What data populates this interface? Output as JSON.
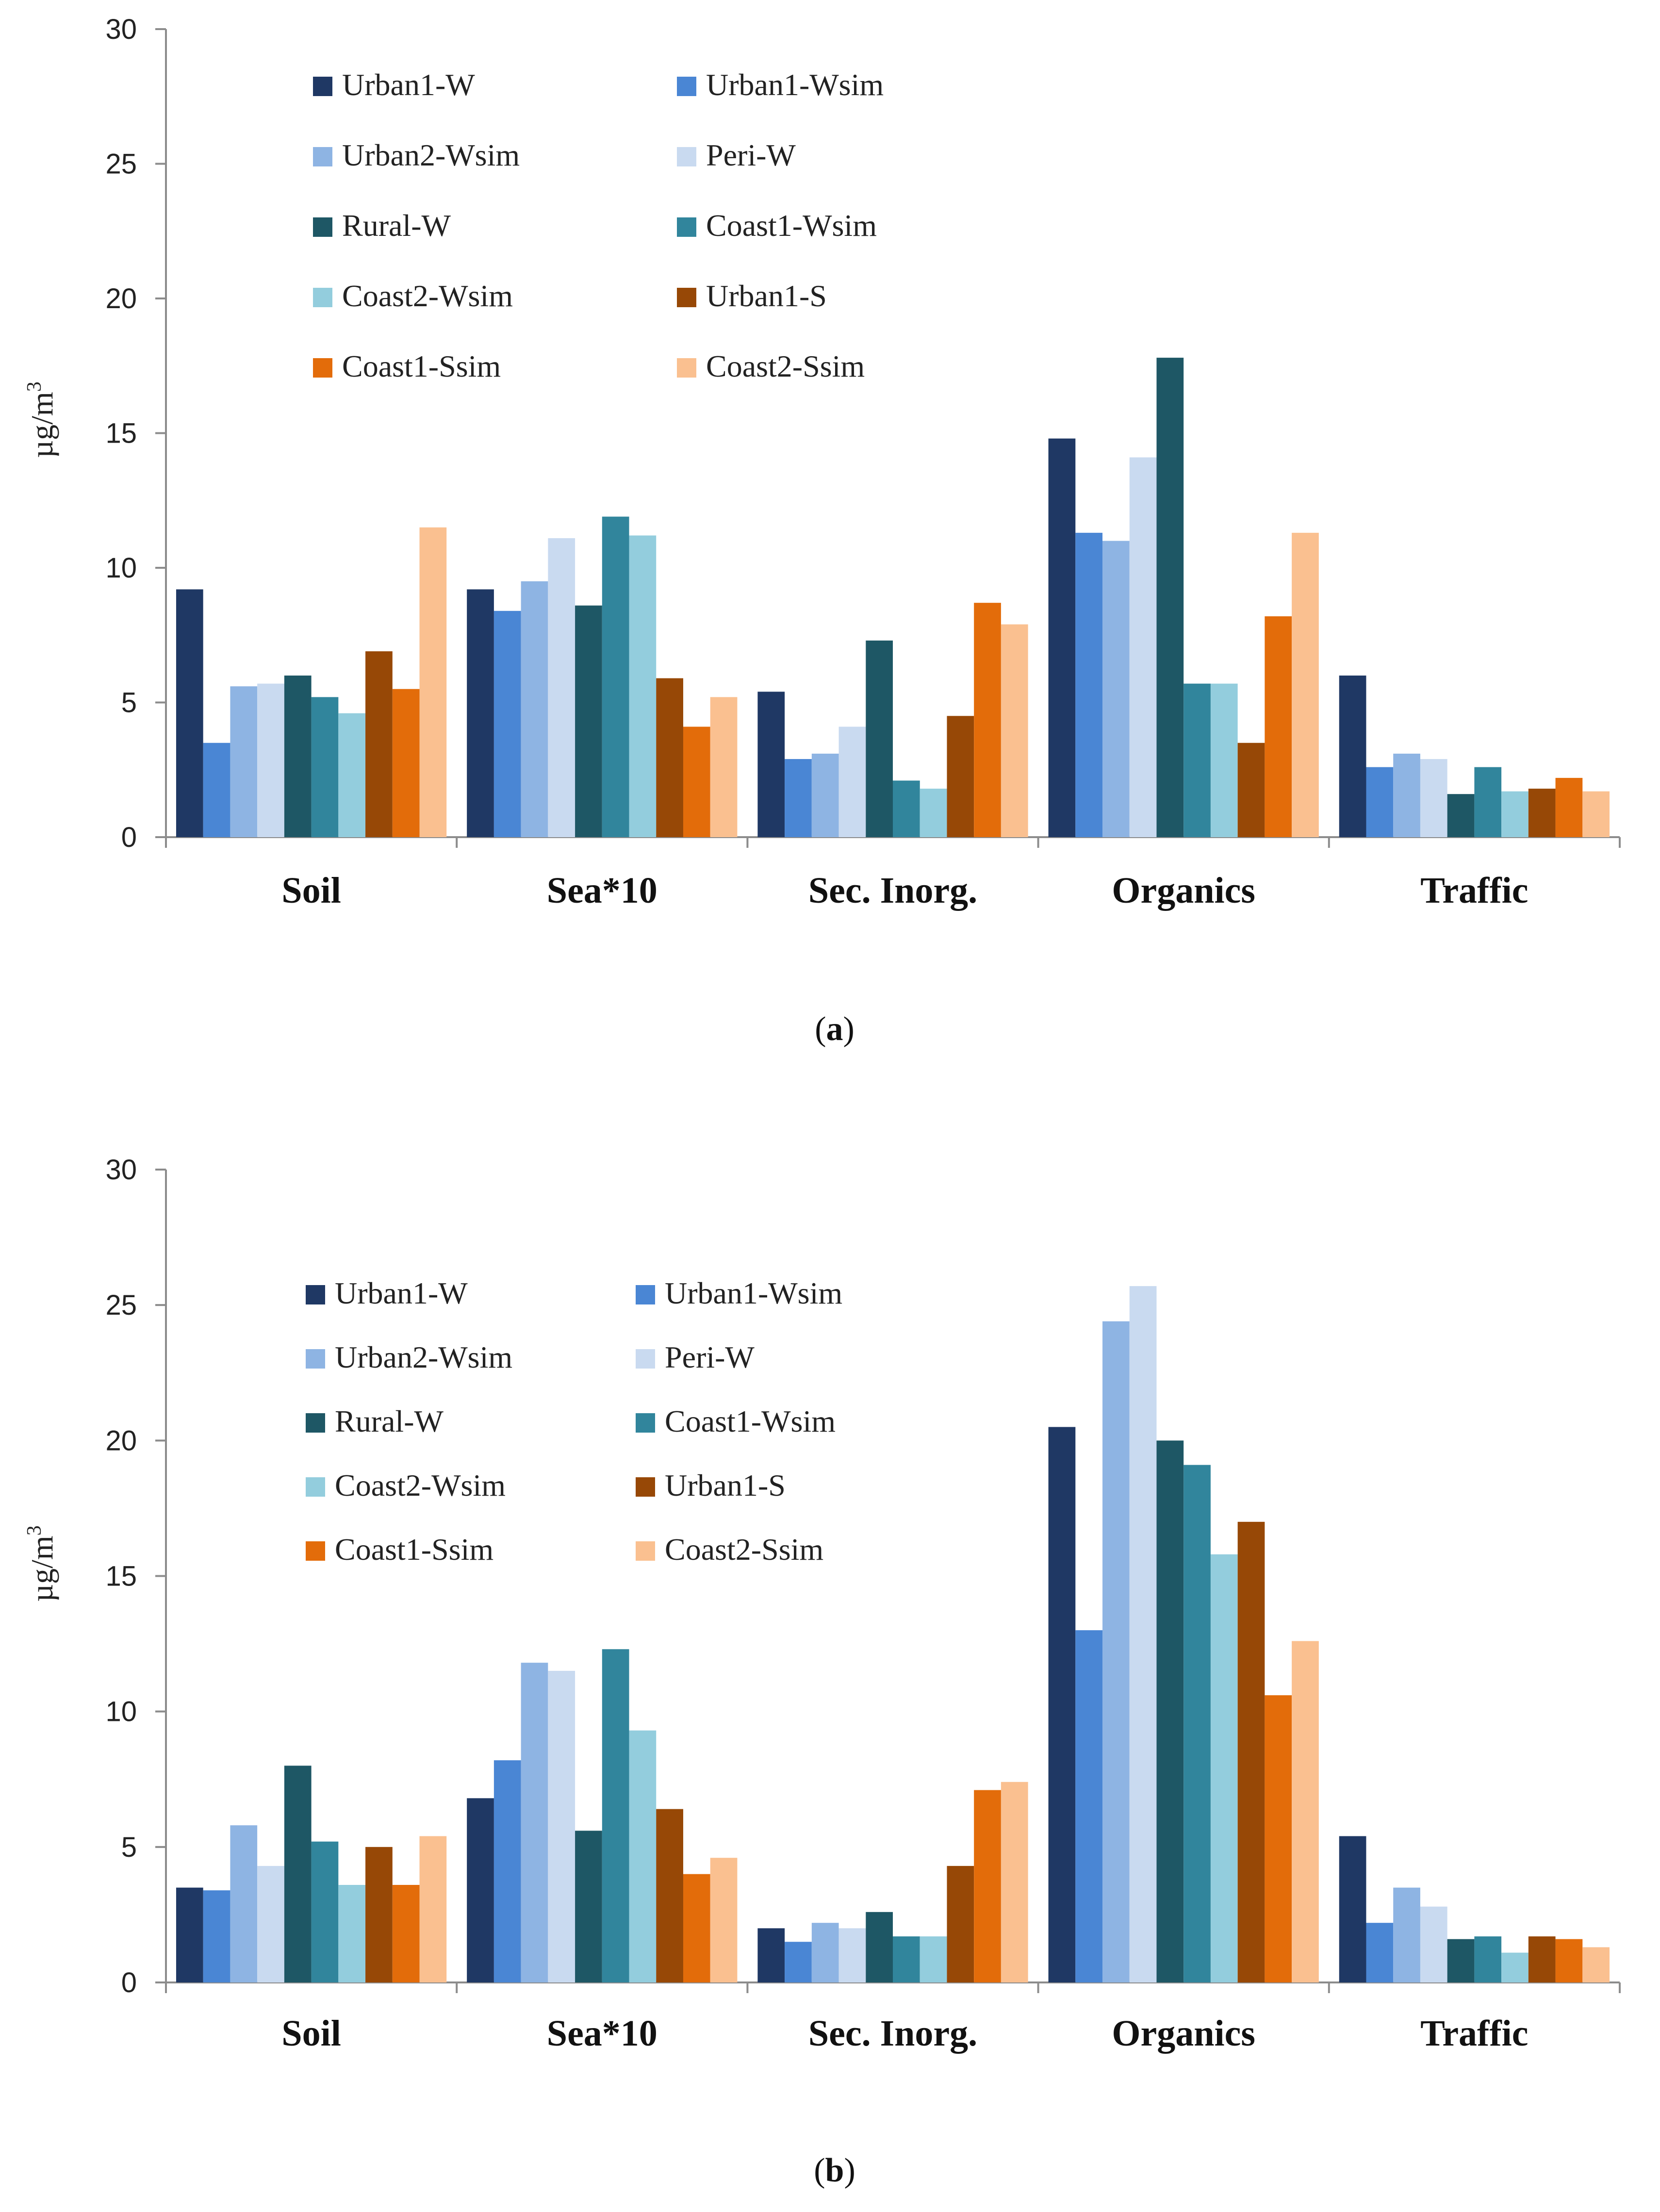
{
  "colors": {
    "Urban1-W": "#1F3864",
    "Urban1-Wsim": "#4A86D4",
    "Urban2-Wsim": "#8EB4E3",
    "Peri-W": "#C9DAF0",
    "Rural-W": "#1E5765",
    "Coast1-Wsim": "#31859C",
    "Coast2-Wsim": "#93CDDD",
    "Urban1-S": "#974806",
    "Coast1-Ssim": "#E36C0A",
    "Coast2-Ssim": "#FAC090"
  },
  "chart_data": [
    {
      "type": "bar",
      "panel_label": "a",
      "ylabel": "µg/m",
      "ylabel_sup": "3",
      "ylim": [
        0,
        30
      ],
      "yticks": [
        "0",
        "5",
        "10",
        "15",
        "20",
        "25",
        "30"
      ],
      "categories": [
        "Soil",
        "Sea*10",
        "Sec. Inorg.",
        "Organics",
        "Traffic"
      ],
      "legend": [
        "Urban1-W",
        "Urban1-Wsim",
        "Urban2-Wsim",
        "Peri-W",
        "Rural-W",
        "Coast1-Wsim",
        "Coast2-Wsim",
        "Urban1-S",
        "Coast1-Ssim",
        "Coast2-Ssim"
      ],
      "legend_position": "top-left",
      "grid": false,
      "series": [
        {
          "name": "Urban1-W",
          "values": [
            9.2,
            9.2,
            5.4,
            14.8,
            6.0
          ]
        },
        {
          "name": "Urban1-Wsim",
          "values": [
            3.5,
            8.4,
            2.9,
            11.3,
            2.6
          ]
        },
        {
          "name": "Urban2-Wsim",
          "values": [
            5.6,
            9.5,
            3.1,
            11.0,
            3.1
          ]
        },
        {
          "name": "Peri-W",
          "values": [
            5.7,
            11.1,
            4.1,
            14.1,
            2.9
          ]
        },
        {
          "name": "Rural-W",
          "values": [
            6.0,
            8.6,
            7.3,
            17.8,
            1.6
          ]
        },
        {
          "name": "Coast1-Wsim",
          "values": [
            5.2,
            11.9,
            2.1,
            5.7,
            2.6
          ]
        },
        {
          "name": "Coast2-Wsim",
          "values": [
            4.6,
            11.2,
            1.8,
            5.7,
            1.7
          ]
        },
        {
          "name": "Urban1-S",
          "values": [
            6.9,
            5.9,
            4.5,
            3.5,
            1.8
          ]
        },
        {
          "name": "Coast1-Ssim",
          "values": [
            5.5,
            4.1,
            8.7,
            8.2,
            2.2
          ]
        },
        {
          "name": "Coast2-Ssim",
          "values": [
            11.5,
            5.2,
            7.9,
            11.3,
            1.7
          ]
        }
      ]
    },
    {
      "type": "bar",
      "panel_label": "b",
      "ylabel": "µg/m",
      "ylabel_sup": "3",
      "ylim": [
        0,
        30
      ],
      "yticks": [
        "0",
        "5",
        "10",
        "15",
        "20",
        "25",
        "30"
      ],
      "categories": [
        "Soil",
        "Sea*10",
        "Sec. Inorg.",
        "Organics",
        "Traffic"
      ],
      "legend": [
        "Urban1-W",
        "Urban1-Wsim",
        "Urban2-Wsim",
        "Peri-W",
        "Rural-W",
        "Coast1-Wsim",
        "Coast2-Wsim",
        "Urban1-S",
        "Coast1-Ssim",
        "Coast2-Ssim"
      ],
      "legend_position": "top-left",
      "grid": false,
      "series": [
        {
          "name": "Urban1-W",
          "values": [
            3.5,
            6.8,
            2.0,
            20.5,
            5.4
          ]
        },
        {
          "name": "Urban1-Wsim",
          "values": [
            3.4,
            8.2,
            1.5,
            13.0,
            2.2
          ]
        },
        {
          "name": "Urban2-Wsim",
          "values": [
            5.8,
            11.8,
            2.2,
            24.4,
            3.5
          ]
        },
        {
          "name": "Peri-W",
          "values": [
            4.3,
            11.5,
            2.0,
            25.7,
            2.8
          ]
        },
        {
          "name": "Rural-W",
          "values": [
            8.0,
            5.6,
            2.6,
            20.0,
            1.6
          ]
        },
        {
          "name": "Coast1-Wsim",
          "values": [
            5.2,
            12.3,
            1.7,
            19.1,
            1.7
          ]
        },
        {
          "name": "Coast2-Wsim",
          "values": [
            3.6,
            9.3,
            1.7,
            15.8,
            1.1
          ]
        },
        {
          "name": "Urban1-S",
          "values": [
            5.0,
            6.4,
            4.3,
            17.0,
            1.7
          ]
        },
        {
          "name": "Coast1-Ssim",
          "values": [
            3.6,
            4.0,
            7.1,
            10.6,
            1.6
          ]
        },
        {
          "name": "Coast2-Ssim",
          "values": [
            5.4,
            4.6,
            7.4,
            12.6,
            1.3
          ]
        }
      ]
    }
  ]
}
